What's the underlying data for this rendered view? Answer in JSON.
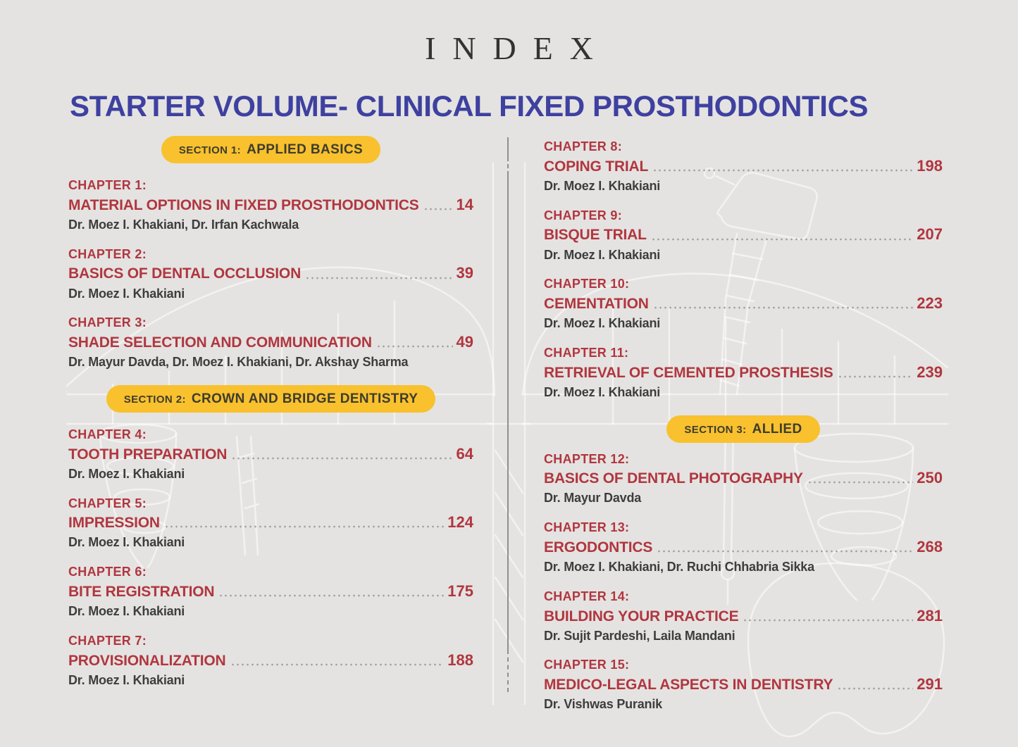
{
  "header": {
    "index_title": "INDEX",
    "volume_title": "STARTER VOLUME- CLINICAL FIXED PROSTHODONTICS"
  },
  "colors": {
    "background": "#e4e3e1",
    "heading_blue": "#3e41a0",
    "chapter_red": "#b1363f",
    "badge_yellow": "#f8c12d",
    "badge_text": "#3e3c30",
    "author_gray": "#3d3d3d",
    "divider_gray": "#8f8f8f"
  },
  "background_art": {
    "watermark": "dental-bridge-implant-and-handpiece-line-art"
  },
  "columns": {
    "left": [
      {
        "kind": "section",
        "label": "SECTION 1:",
        "title": "APPLIED BASICS"
      },
      {
        "kind": "chapter",
        "label": "CHAPTER 1:",
        "title": "MATERIAL OPTIONS IN FIXED PROSTHODONTICS",
        "page": "14",
        "authors": "Dr. Moez I. Khakiani, Dr. Irfan Kachwala"
      },
      {
        "kind": "chapter",
        "label": "CHAPTER 2:",
        "title": "BASICS OF DENTAL OCCLUSION",
        "page": "39",
        "authors": "Dr. Moez I. Khakiani"
      },
      {
        "kind": "chapter",
        "label": "CHAPTER 3:",
        "title": "SHADE SELECTION AND COMMUNICATION",
        "page": "49",
        "authors": "Dr. Mayur Davda, Dr. Moez I. Khakiani, Dr. Akshay Sharma"
      },
      {
        "kind": "section",
        "label": "SECTION 2:",
        "title": "CROWN AND BRIDGE DENTISTRY"
      },
      {
        "kind": "chapter",
        "label": "CHAPTER 4:",
        "title": "TOOTH PREPARATION",
        "page": "64",
        "authors": "Dr. Moez I. Khakiani"
      },
      {
        "kind": "chapter",
        "label": "CHAPTER 5:",
        "title": "IMPRESSION",
        "page": "124",
        "authors": "Dr. Moez I. Khakiani"
      },
      {
        "kind": "chapter",
        "label": "CHAPTER 6:",
        "title": "BITE REGISTRATION",
        "page": "175",
        "authors": "Dr. Moez I. Khakiani"
      },
      {
        "kind": "chapter",
        "label": "CHAPTER 7:",
        "title": "PROVISIONALIZATION",
        "page": "188",
        "authors": "Dr. Moez I. Khakiani"
      }
    ],
    "right": [
      {
        "kind": "chapter",
        "label": "CHAPTER 8:",
        "title": "COPING TRIAL",
        "page": "198",
        "authors": "Dr. Moez I. Khakiani"
      },
      {
        "kind": "chapter",
        "label": "CHAPTER 9:",
        "title": "BISQUE TRIAL",
        "page": "207",
        "authors": "Dr. Moez I. Khakiani"
      },
      {
        "kind": "chapter",
        "label": "CHAPTER 10:",
        "title": "CEMENTATION",
        "page": "223",
        "authors": "Dr. Moez I. Khakiani"
      },
      {
        "kind": "chapter",
        "label": "CHAPTER 11:",
        "title": "RETRIEVAL OF CEMENTED PROSTHESIS",
        "page": "239",
        "authors": "Dr. Moez I. Khakiani"
      },
      {
        "kind": "section",
        "label": "SECTION 3:",
        "title": "ALLIED"
      },
      {
        "kind": "chapter",
        "label": "CHAPTER 12:",
        "title": "BASICS OF DENTAL PHOTOGRAPHY",
        "page": "250",
        "authors": "Dr. Mayur Davda"
      },
      {
        "kind": "chapter",
        "label": "CHAPTER 13:",
        "title": "ERGODONTICS",
        "page": "268",
        "authors": "Dr. Moez I. Khakiani, Dr. Ruchi Chhabria Sikka"
      },
      {
        "kind": "chapter",
        "label": "CHAPTER 14:",
        "title": "BUILDING YOUR PRACTICE",
        "page": "281",
        "authors": "Dr. Sujit Pardeshi, Laila Mandani"
      },
      {
        "kind": "chapter",
        "label": "CHAPTER 15:",
        "title": "MEDICO-LEGAL ASPECTS IN DENTISTRY",
        "page": "291",
        "authors": "Dr. Vishwas Puranik"
      }
    ]
  }
}
